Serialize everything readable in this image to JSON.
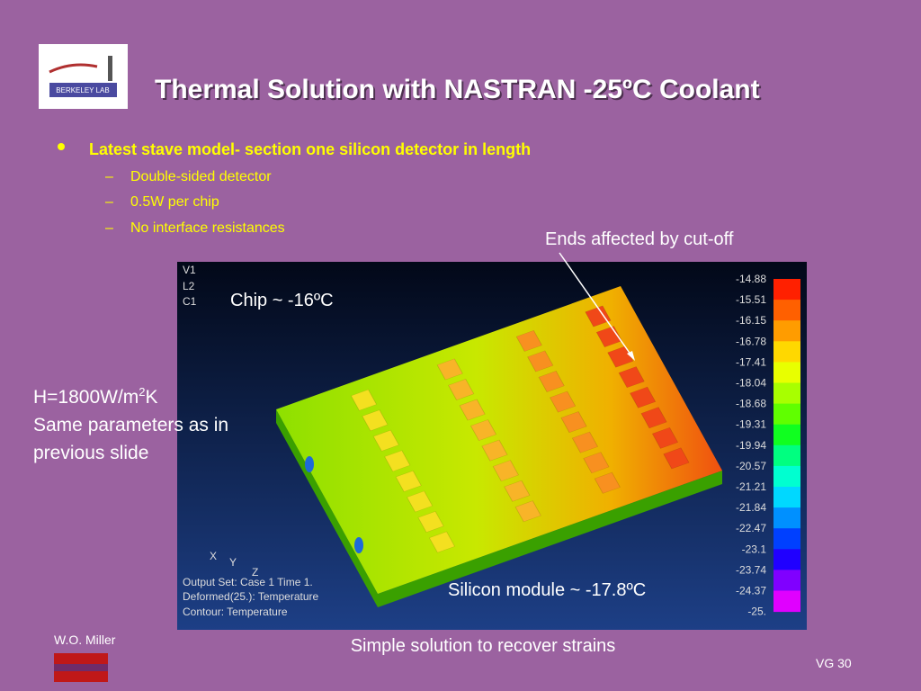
{
  "header": {
    "title": "Thermal Solution with NASTRAN -25ºC Coolant",
    "logo_label": "BERKELEY LAB"
  },
  "bullets": {
    "main": "Latest stave model- section one silicon detector in length",
    "sub": [
      "Double-sided detector",
      "0.5W per chip",
      "No interface resistances"
    ]
  },
  "callouts": {
    "ends": "Ends affected by cut-off",
    "chip": "Chip ~ -16ºC",
    "silicon": "Silicon module ~ -17.8ºC",
    "h_parts": [
      "H=1800W/m",
      "2",
      "K"
    ],
    "same": "Same parameters as in",
    "previous": "previous slide",
    "caption": "Simple solution to recover strains"
  },
  "figure": {
    "view_labels": [
      "V1",
      "L2",
      "C1"
    ],
    "axes": [
      "X",
      "Y",
      "Z"
    ],
    "info": [
      "Output Set: Case 1 Time 1.",
      "Deformed(25.): Temperature",
      "Contour: Temperature"
    ],
    "colorbar": [
      "-14.88",
      "-15.51",
      "-16.15",
      "-16.78",
      "-17.41",
      "-18.04",
      "-18.68",
      "-19.31",
      "-19.94",
      "-20.57",
      "-21.21",
      "-21.84",
      "-22.47",
      "-23.1",
      "-23.74",
      "-24.37",
      "-25."
    ]
  },
  "footer": {
    "author": "W.O. Miller",
    "page": "VG 30"
  }
}
